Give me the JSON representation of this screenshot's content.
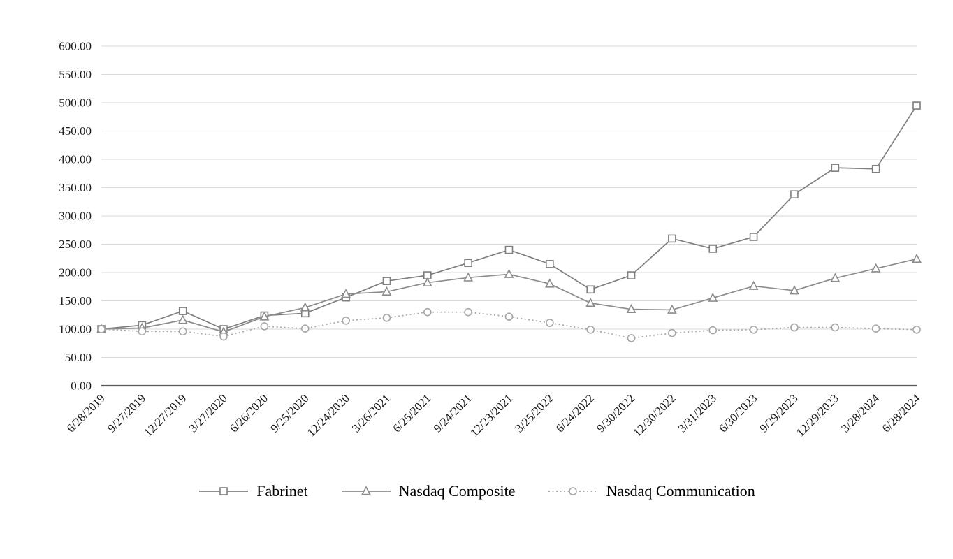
{
  "chart_data": {
    "type": "line",
    "title": "",
    "xlabel": "",
    "ylabel": "",
    "x_labels": [
      "6/28/2019",
      "9/27/2019",
      "12/27/2019",
      "3/27/2020",
      "6/26/2020",
      "9/25/2020",
      "12/24/2020",
      "3/26/2021",
      "6/25/2021",
      "9/24/2021",
      "12/23/2021",
      "3/25/2022",
      "6/24/2022",
      "9/30/2022",
      "12/30/2022",
      "3/31/2023",
      "6/30/2023",
      "9/29/2023",
      "12/29/2023",
      "3/28/2024",
      "6/28/2024"
    ],
    "ylim": [
      0,
      600
    ],
    "y_tick_step": 50,
    "y_ticks": [
      {
        "value": 0,
        "label": "0.00"
      },
      {
        "value": 50,
        "label": "50.00"
      },
      {
        "value": 100,
        "label": "100.00"
      },
      {
        "value": 150,
        "label": "150.00"
      },
      {
        "value": 200,
        "label": "200.00"
      },
      {
        "value": 250,
        "label": "250.00"
      },
      {
        "value": 300,
        "label": "300.00"
      },
      {
        "value": 350,
        "label": "350.00"
      },
      {
        "value": 400,
        "label": "400.00"
      },
      {
        "value": 450,
        "label": "450.00"
      },
      {
        "value": 500,
        "label": "500.00"
      },
      {
        "value": 550,
        "label": "550.00"
      },
      {
        "value": 600,
        "label": "600.00"
      }
    ],
    "grid": true,
    "legend_position": "bottom",
    "grid_color": "#d9d9d9",
    "axis_color": "#595959",
    "text_color": "#1a1a1a",
    "series": [
      {
        "name": "Fabrinet",
        "marker": "square",
        "line_style": "solid",
        "color": "#7f7f7f",
        "values": [
          100,
          107,
          132,
          100,
          124,
          128,
          156,
          185,
          195,
          217,
          240,
          215,
          170,
          195,
          260,
          242,
          263,
          338,
          385,
          383,
          495
        ]
      },
      {
        "name": "Nasdaq Composite",
        "marker": "triangle",
        "line_style": "solid",
        "color": "#8c8c8c",
        "values": [
          100,
          102,
          116,
          95,
          122,
          138,
          162,
          166,
          182,
          191,
          197,
          180,
          146,
          135,
          134,
          155,
          176,
          168,
          190,
          207,
          224
        ]
      },
      {
        "name": "Nasdaq Communication",
        "marker": "circle",
        "line_style": "dotted",
        "color": "#a6a6a6",
        "values": [
          100,
          96,
          96,
          87,
          105,
          101,
          115,
          120,
          130,
          130,
          122,
          111,
          99,
          84,
          93,
          98,
          99,
          103,
          103,
          101,
          99
        ]
      }
    ]
  }
}
